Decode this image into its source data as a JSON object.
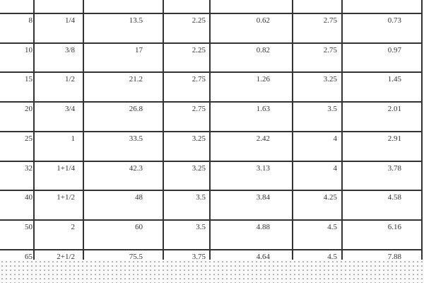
{
  "table": {
    "rows": [
      [
        "8",
        "1/4",
        "13.5",
        "2.25",
        "0.62",
        "2.75",
        "0.73"
      ],
      [
        "10",
        "3/8",
        "17",
        "2.25",
        "0.82",
        "2.75",
        "0.97"
      ],
      [
        "15",
        "1/2",
        "21.2",
        "2.75",
        "1.26",
        "3.25",
        "1.45"
      ],
      [
        "20",
        "3/4",
        "26.8",
        "2.75",
        "1.63",
        "3.5",
        "2.01"
      ],
      [
        "25",
        "1",
        "33.5",
        "3.25",
        "2.42",
        "4",
        "2.91"
      ],
      [
        "32",
        "1+1/4",
        "42.3",
        "3.25",
        "3.13",
        "4",
        "3.78"
      ],
      [
        "40",
        "1+1/2",
        "48",
        "3.5",
        "3.84",
        "4.25",
        "4.58"
      ],
      [
        "50",
        "2",
        "60",
        "3.5",
        "4.88",
        "4.5",
        "6.16"
      ],
      [
        "65",
        "2+1/2",
        "75.5",
        "3.75",
        "4.64",
        "4.5",
        "7.88"
      ]
    ]
  }
}
